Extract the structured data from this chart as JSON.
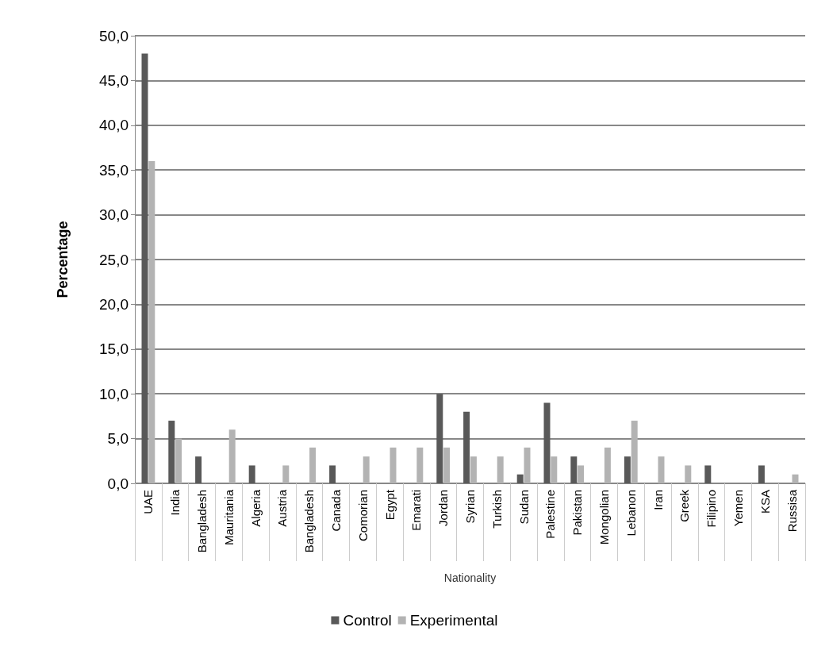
{
  "chart_data": {
    "type": "bar",
    "xlabel": "Nationality",
    "ylabel": "Percentage",
    "categories": [
      "UAE",
      "India",
      "Bangladesh",
      "Mauritania",
      "Algeria",
      "Austria",
      "Bangladesh",
      "Canada",
      "Comorian",
      "Egypt",
      "Emarati",
      "Jordan",
      "Syrian",
      "Turkish",
      "Sudan",
      "Palestine",
      "Pakistan",
      "Mongolian",
      "Lebanon",
      "Iran",
      "Greek",
      "Filipino",
      "Yemen",
      "KSA",
      "Russisa"
    ],
    "series": [
      {
        "name": "Control",
        "color": "#595959",
        "values": [
          48,
          7,
          3,
          0,
          2,
          0,
          0,
          2,
          0,
          0,
          0,
          10,
          8,
          0,
          1,
          9,
          3,
          0,
          3,
          0,
          0,
          2,
          0,
          2,
          0
        ]
      },
      {
        "name": "Experimental",
        "color": "#b3b3b3",
        "values": [
          36,
          5,
          0,
          6,
          0,
          2,
          4,
          0,
          3,
          4,
          4,
          4,
          3,
          3,
          4,
          3,
          2,
          4,
          7,
          3,
          2,
          0,
          0,
          0,
          1
        ]
      }
    ],
    "ylim": [
      0,
      50
    ],
    "yticks": [
      {
        "value": 0,
        "label": "0,0"
      },
      {
        "value": 5,
        "label": "5,0"
      },
      {
        "value": 10,
        "label": "10,0"
      },
      {
        "value": 15,
        "label": "15,0"
      },
      {
        "value": 20,
        "label": "20,0"
      },
      {
        "value": 25,
        "label": "25,0"
      },
      {
        "value": 30,
        "label": "30,0"
      },
      {
        "value": 35,
        "label": "35,0"
      },
      {
        "value": 40,
        "label": "40,0"
      },
      {
        "value": 45,
        "label": "45,0"
      },
      {
        "value": 50,
        "label": "50,0"
      }
    ],
    "grid": "y",
    "legend": "bottom"
  }
}
